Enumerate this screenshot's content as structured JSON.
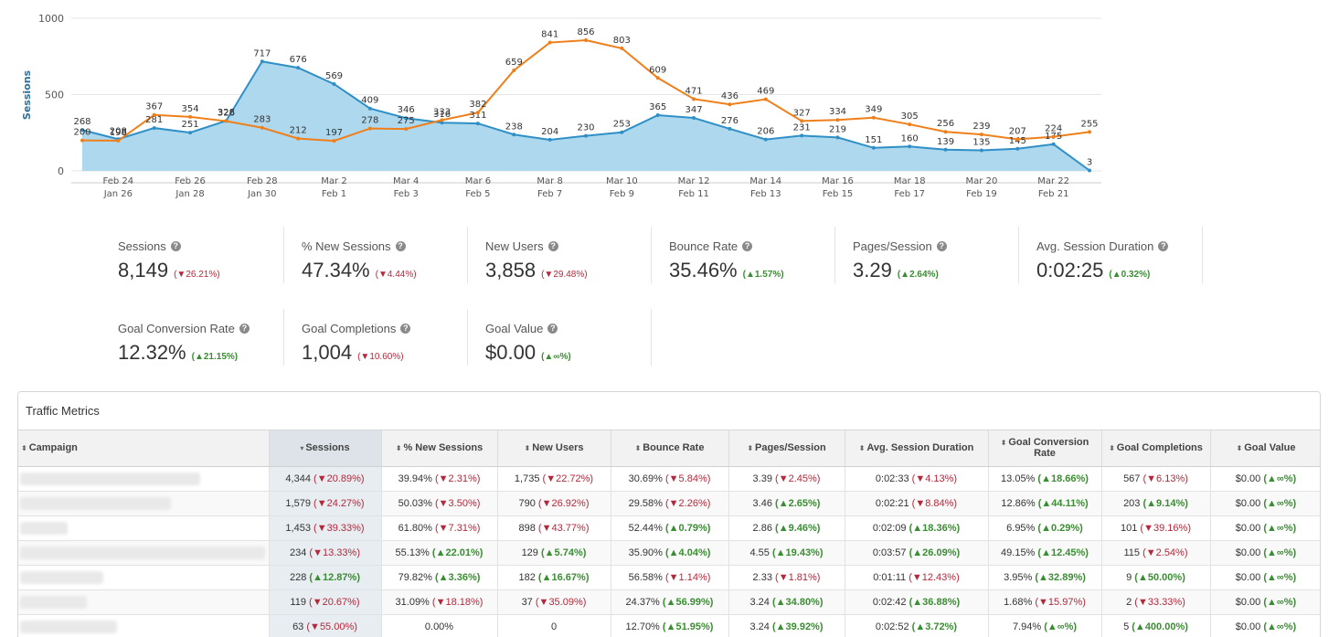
{
  "chart_data": {
    "type": "area",
    "ylabel": "Sessions",
    "ylim": [
      0,
      1000
    ],
    "yticks": [
      "0",
      "500",
      "1000"
    ],
    "x_labels_primary": [
      "Feb 24",
      "Feb 26",
      "Feb 28",
      "Mar 2",
      "Mar 4",
      "Mar 6",
      "Mar 8",
      "Mar 10",
      "Mar 12",
      "Mar 14",
      "Mar 16",
      "Mar 18",
      "Mar 20",
      "Mar 22"
    ],
    "x_labels_secondary": [
      "Jan 26",
      "Jan 28",
      "Jan 30",
      "Feb 1",
      "Feb 3",
      "Feb 5",
      "Feb 7",
      "Feb 9",
      "Feb 11",
      "Feb 13",
      "Feb 15",
      "Feb 17",
      "Feb 19",
      "Feb 21"
    ],
    "series": [
      {
        "color": "#2f8fc7",
        "fill": "#aed8ee",
        "values": [
          268,
          208,
          281,
          251,
          328,
          717,
          676,
          569,
          409,
          346,
          316,
          311,
          238,
          204,
          230,
          253,
          365,
          347,
          276,
          206,
          231,
          219,
          151,
          160,
          139,
          135,
          145,
          175,
          3
        ]
      },
      {
        "color": "#ef7f1a",
        "values": [
          200,
          198,
          367,
          354,
          326,
          283,
          212,
          197,
          278,
          275,
          333,
          382,
          659,
          841,
          856,
          803,
          609,
          471,
          436,
          469,
          327,
          334,
          349,
          305,
          256,
          239,
          207,
          224,
          255
        ]
      }
    ]
  },
  "scorecards": [
    {
      "label": "Sessions",
      "value": "8,149",
      "change": "26.21%",
      "dir": "down"
    },
    {
      "label": "% New Sessions",
      "value": "47.34%",
      "change": "4.44%",
      "dir": "down"
    },
    {
      "label": "New Users",
      "value": "3,858",
      "change": "29.48%",
      "dir": "down"
    },
    {
      "label": "Bounce Rate",
      "value": "35.46%",
      "change": "1.57%",
      "dir": "up"
    },
    {
      "label": "Pages/Session",
      "value": "3.29",
      "change": "2.64%",
      "dir": "up"
    },
    {
      "label": "Avg. Session Duration",
      "value": "0:02:25",
      "change": "0.32%",
      "dir": "up"
    },
    {
      "label": "Goal Conversion Rate",
      "value": "12.32%",
      "change": "21.15%",
      "dir": "up"
    },
    {
      "label": "Goal Completions",
      "value": "1,004",
      "change": "10.60%",
      "dir": "down"
    },
    {
      "label": "Goal Value",
      "value": "$0.00",
      "change": "∞%",
      "dir": "up"
    }
  ],
  "table": {
    "title": "Traffic Metrics",
    "columns": [
      "Campaign",
      "Sessions",
      "% New Sessions",
      "New Users",
      "Bounce Rate",
      "Pages/Session",
      "Avg. Session Duration",
      "Goal Conversion Rate",
      "Goal Completions",
      "Goal Value"
    ],
    "rows": [
      [
        [
          "4,344",
          "20.89%",
          "down"
        ],
        [
          "39.94%",
          "2.31%",
          "down"
        ],
        [
          "1,735",
          "22.72%",
          "down"
        ],
        [
          "30.69%",
          "5.84%",
          "down"
        ],
        [
          "3.39",
          "2.45%",
          "down"
        ],
        [
          "0:02:33",
          "4.13%",
          "down"
        ],
        [
          "13.05%",
          "18.66%",
          "up"
        ],
        [
          "567",
          "6.13%",
          "down"
        ],
        [
          "$0.00",
          "∞%",
          "up"
        ]
      ],
      [
        [
          "1,579",
          "24.27%",
          "down"
        ],
        [
          "50.03%",
          "3.50%",
          "down"
        ],
        [
          "790",
          "26.92%",
          "down"
        ],
        [
          "29.58%",
          "2.26%",
          "down"
        ],
        [
          "3.46",
          "2.65%",
          "up"
        ],
        [
          "0:02:21",
          "8.84%",
          "down"
        ],
        [
          "12.86%",
          "44.11%",
          "up"
        ],
        [
          "203",
          "9.14%",
          "up"
        ],
        [
          "$0.00",
          "∞%",
          "up"
        ]
      ],
      [
        [
          "1,453",
          "39.33%",
          "down"
        ],
        [
          "61.80%",
          "7.31%",
          "down"
        ],
        [
          "898",
          "43.77%",
          "down"
        ],
        [
          "52.44%",
          "0.79%",
          "up"
        ],
        [
          "2.86",
          "9.46%",
          "up"
        ],
        [
          "0:02:09",
          "18.36%",
          "up"
        ],
        [
          "6.95%",
          "0.29%",
          "up"
        ],
        [
          "101",
          "39.16%",
          "down"
        ],
        [
          "$0.00",
          "∞%",
          "up"
        ]
      ],
      [
        [
          "234",
          "13.33%",
          "down"
        ],
        [
          "55.13%",
          "22.01%",
          "up"
        ],
        [
          "129",
          "5.74%",
          "up"
        ],
        [
          "35.90%",
          "4.04%",
          "up"
        ],
        [
          "4.55",
          "19.43%",
          "up"
        ],
        [
          "0:03:57",
          "26.09%",
          "up"
        ],
        [
          "49.15%",
          "12.45%",
          "up"
        ],
        [
          "115",
          "2.54%",
          "down"
        ],
        [
          "$0.00",
          "∞%",
          "up"
        ]
      ],
      [
        [
          "228",
          "12.87%",
          "up"
        ],
        [
          "79.82%",
          "3.36%",
          "up"
        ],
        [
          "182",
          "16.67%",
          "up"
        ],
        [
          "56.58%",
          "1.14%",
          "down"
        ],
        [
          "2.33",
          "1.81%",
          "down"
        ],
        [
          "0:01:11",
          "12.43%",
          "down"
        ],
        [
          "3.95%",
          "32.89%",
          "up"
        ],
        [
          "9",
          "50.00%",
          "up"
        ],
        [
          "$0.00",
          "∞%",
          "up"
        ]
      ],
      [
        [
          "119",
          "20.67%",
          "down"
        ],
        [
          "31.09%",
          "18.18%",
          "down"
        ],
        [
          "37",
          "35.09%",
          "down"
        ],
        [
          "24.37%",
          "56.99%",
          "up"
        ],
        [
          "3.24",
          "34.80%",
          "up"
        ],
        [
          "0:02:42",
          "36.88%",
          "up"
        ],
        [
          "1.68%",
          "15.97%",
          "down"
        ],
        [
          "2",
          "33.33%",
          "down"
        ],
        [
          "$0.00",
          "∞%",
          "up"
        ]
      ],
      [
        [
          "63",
          "55.00%",
          "down"
        ],
        [
          "0.00%",
          "",
          ""
        ],
        [
          "0",
          "",
          ""
        ],
        [
          "12.70%",
          "51.95%",
          "up"
        ],
        [
          "3.24",
          "39.92%",
          "up"
        ],
        [
          "0:02:52",
          "3.72%",
          "up"
        ],
        [
          "7.94%",
          "∞%",
          "up"
        ],
        [
          "5",
          "400.00%",
          "up"
        ],
        [
          "$0.00",
          "∞%",
          "up"
        ]
      ]
    ],
    "colors": {
      "up": "#3a8d32",
      "down": "#b3283a",
      "sorted_header": "#dde3e8"
    }
  }
}
